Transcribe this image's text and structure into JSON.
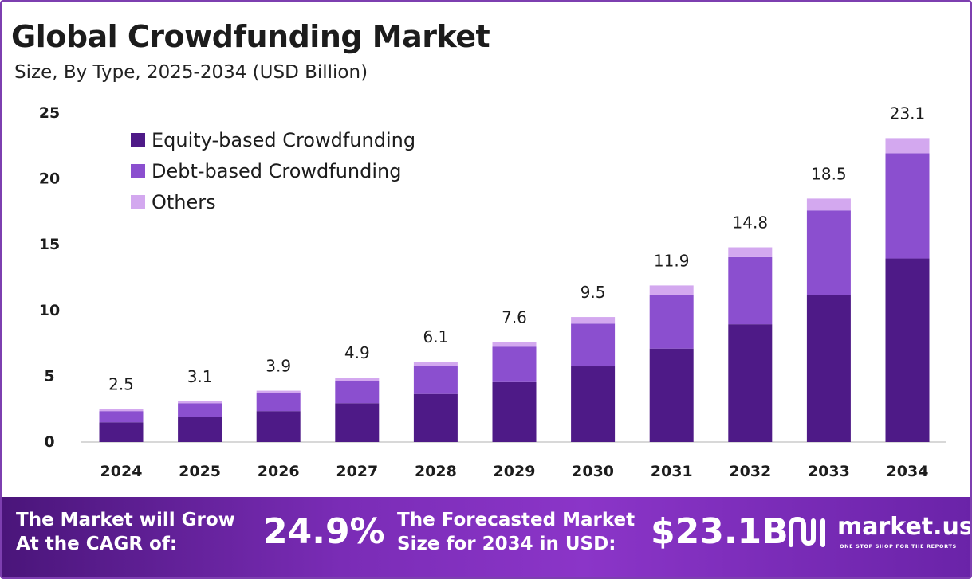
{
  "header": {
    "title": "Global Crowdfunding Market",
    "subtitle": "Size, By Type, 2025-2034 (USD Billion)"
  },
  "colors": {
    "equity": "#4e1a87",
    "debt": "#8b4fcf",
    "others": "#d3a8ef",
    "axis": "#cccccc",
    "frame": "#7d3fb0"
  },
  "chart_data": {
    "type": "bar",
    "stacked": true,
    "categories": [
      "2024",
      "2025",
      "2026",
      "2027",
      "2028",
      "2029",
      "2030",
      "2031",
      "2032",
      "2033",
      "2034"
    ],
    "series": [
      {
        "name": "Equity-based Crowdfunding",
        "values": [
          1.5,
          1.9,
          2.35,
          2.95,
          3.65,
          4.55,
          5.75,
          7.1,
          8.95,
          11.15,
          13.95
        ]
      },
      {
        "name": "Debt-based Crowdfunding",
        "values": [
          0.85,
          1.05,
          1.35,
          1.7,
          2.15,
          2.7,
          3.25,
          4.1,
          5.1,
          6.45,
          8.0
        ]
      },
      {
        "name": "Others",
        "values": [
          0.15,
          0.15,
          0.2,
          0.25,
          0.3,
          0.35,
          0.5,
          0.7,
          0.75,
          0.9,
          1.15
        ]
      }
    ],
    "totals": [
      "2.5",
      "3.1",
      "3.9",
      "4.9",
      "6.1",
      "7.6",
      "9.5",
      "11.9",
      "14.8",
      "18.5",
      "23.1"
    ],
    "yticks": [
      "0",
      "5",
      "10",
      "15",
      "20",
      "25"
    ],
    "ylim": [
      0,
      25
    ],
    "legend_position": "top-left",
    "grid": false
  },
  "footer": {
    "cagr_label_line1": "The Market will Grow",
    "cagr_label_line2": "At the CAGR of:",
    "cagr_value": "24.9%",
    "forecast_label_line1": "The Forecasted Market",
    "forecast_label_line2": "Size for 2034 in USD:",
    "forecast_value": "$23.1B",
    "logo_text": "market.us",
    "logo_tagline": "ONE STOP SHOP FOR THE REPORTS",
    "logo_icon": "market-us-logo-icon"
  }
}
